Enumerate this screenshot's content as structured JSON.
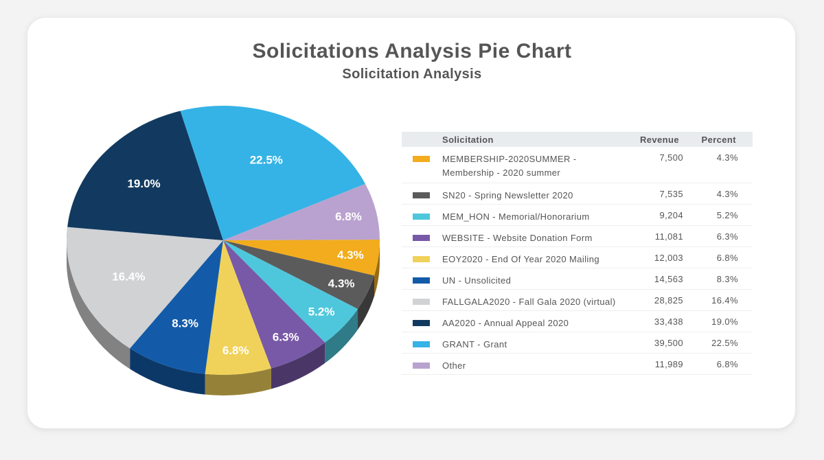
{
  "header": {
    "title": "Solicitations Analysis Pie Chart",
    "subtitle": "Solicitation Analysis"
  },
  "legend_table": {
    "headers": {
      "solicitation": "Solicitation",
      "revenue": "Revenue",
      "percent": "Percent"
    }
  },
  "chart_data": {
    "type": "pie",
    "title": "Solicitations Analysis Pie Chart",
    "subtitle": "Solicitation Analysis",
    "slices": [
      {
        "label": "MEMBERSHIP-2020SUMMER - Membership - 2020 summer",
        "revenue": "7,500",
        "value": 4.3,
        "percent": "4.3%",
        "color": "#f2ac1d"
      },
      {
        "label": "SN20 - Spring Newsletter 2020",
        "revenue": "7,535",
        "value": 4.3,
        "percent": "4.3%",
        "color": "#5b5b5b"
      },
      {
        "label": "MEM_HON - Memorial/Honorarium",
        "revenue": "9,204",
        "value": 5.2,
        "percent": "5.2%",
        "color": "#4ec7dc"
      },
      {
        "label": "WEBSITE - Website Donation Form",
        "revenue": "11,081",
        "value": 6.3,
        "percent": "6.3%",
        "color": "#7859a7"
      },
      {
        "label": "EOY2020 - End Of Year 2020 Mailing",
        "revenue": "12,003",
        "value": 6.8,
        "percent": "6.8%",
        "color": "#f0d25a"
      },
      {
        "label": "UN - Unsolicited",
        "revenue": "14,563",
        "value": 8.3,
        "percent": "8.3%",
        "color": "#135ba8"
      },
      {
        "label": "FALLGALA2020 - Fall Gala 2020 (virtual)",
        "revenue": "28,825",
        "value": 16.4,
        "percent": "16.4%",
        "color": "#d1d2d4"
      },
      {
        "label": "AA2020 - Annual Appeal 2020",
        "revenue": "33,438",
        "value": 19.0,
        "percent": "19.0%",
        "color": "#123a60"
      },
      {
        "label": "GRANT - Grant",
        "revenue": "39,500",
        "value": 22.5,
        "percent": "22.5%",
        "color": "#35b3e6"
      },
      {
        "label": "Other",
        "revenue": "11,989",
        "value": 6.8,
        "percent": "6.8%",
        "color": "#b9a2cf"
      }
    ]
  }
}
